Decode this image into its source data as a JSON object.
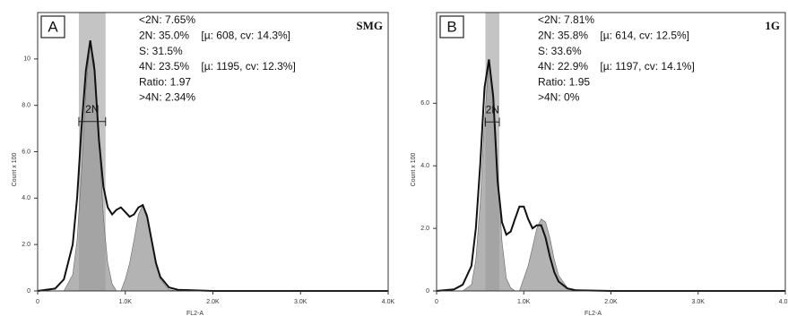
{
  "chart_data": [
    {
      "type": "line",
      "panel": "A",
      "sample": "SMG",
      "annotations": [
        "<2N: 7.65%",
        "2N: 35.0%    [µ: 608, cv: 14.3%]",
        "S: 31.5%",
        "4N: 23.5%    [µ: 1195, cv: 12.3%]",
        "Ratio: 1.97",
        ">4N: 2.34%"
      ],
      "y_label": "Count x 100",
      "x_label": "FL2-A",
      "x": [
        0,
        200,
        300,
        400,
        450,
        500,
        550,
        600,
        650,
        700,
        750,
        800,
        850,
        900,
        950,
        1000,
        1050,
        1100,
        1150,
        1200,
        1250,
        1300,
        1350,
        1400,
        1500,
        1600,
        2000,
        4000
      ],
      "series": [
        {
          "color": "#9a9a9a",
          "fill": true,
          "values": [
            0,
            0,
            0,
            0.7,
            2.2,
            5.1,
            8.7,
            10.8,
            9.8,
            6.5,
            3.2,
            1.2,
            0.3,
            0,
            0,
            0,
            0,
            0,
            0,
            0,
            0,
            0,
            0,
            0,
            0,
            0,
            0,
            0
          ]
        },
        {
          "color": "#9a9a9a",
          "fill": true,
          "values": [
            0,
            0,
            0,
            0,
            0,
            0,
            0,
            0,
            0,
            0,
            0,
            0,
            0,
            0,
            0,
            0.5,
            1.2,
            2.2,
            3.3,
            3.7,
            3.3,
            2.2,
            1.2,
            0.5,
            0.05,
            0,
            0,
            0
          ]
        },
        {
          "color": "#111111",
          "fill": false,
          "values": [
            0,
            0.1,
            0.5,
            2,
            4,
            7,
            9.5,
            10.8,
            9.5,
            6.5,
            4.5,
            3.6,
            3.3,
            3.5,
            3.6,
            3.4,
            3.2,
            3.3,
            3.6,
            3.7,
            3.2,
            2.2,
            1.2,
            0.6,
            0.15,
            0.05,
            0,
            0
          ]
        }
      ],
      "gate": {
        "label": "2N",
        "range": [
          470,
          775
        ],
        "level": 7.3
      },
      "xlim": [
        0,
        4000
      ],
      "ylim": [
        0,
        12
      ],
      "xticks": [
        0,
        {
          "value": 1000,
          "label": "1.0K"
        },
        {
          "value": 2000,
          "label": "2.0K"
        },
        {
          "value": 3000,
          "label": "3.0K"
        },
        {
          "value": 4000,
          "label": "4.0K"
        }
      ],
      "yticks": [
        0,
        {
          "value": 2,
          "label": "2.0"
        },
        {
          "value": 4,
          "label": "4.0"
        },
        {
          "value": 6,
          "label": "6.0"
        },
        {
          "value": 8,
          "label": "8.0"
        },
        10
      ]
    },
    {
      "type": "line",
      "panel": "B",
      "sample": "1G",
      "annotations": [
        "<2N: 7.81%",
        "2N: 35.8%    [µ: 614, cv: 12.5%]",
        "S: 33.6%",
        "4N: 22.9%    [µ: 1197, cv: 14.1%]",
        "Ratio: 1.95",
        ">4N: 0%"
      ],
      "y_label": "Count x 100",
      "x_label": "FL2-A",
      "x": [
        0,
        200,
        300,
        400,
        450,
        500,
        550,
        600,
        650,
        700,
        750,
        800,
        850,
        900,
        950,
        1000,
        1050,
        1100,
        1150,
        1200,
        1250,
        1300,
        1350,
        1400,
        1500,
        1600,
        2000,
        4000
      ],
      "series": [
        {
          "color": "#9a9a9a",
          "fill": true,
          "values": [
            0,
            0,
            0,
            0.2,
            1,
            2.8,
            5.5,
            7.3,
            6.4,
            3.9,
            1.6,
            0.4,
            0.1,
            0,
            0,
            0,
            0,
            0,
            0,
            0,
            0,
            0,
            0,
            0,
            0,
            0,
            0,
            0
          ]
        },
        {
          "color": "#9a9a9a",
          "fill": true,
          "values": [
            0,
            0,
            0,
            0,
            0,
            0,
            0,
            0,
            0,
            0,
            0,
            0,
            0,
            0,
            0,
            0.4,
            0.8,
            1.4,
            2,
            2.3,
            2.2,
            1.7,
            1,
            0.5,
            0.1,
            0,
            0,
            0
          ]
        },
        {
          "color": "#111111",
          "fill": false,
          "values": [
            0,
            0.05,
            0.2,
            0.8,
            2,
            4,
            6.5,
            7.4,
            6.2,
            3.5,
            2.2,
            1.8,
            1.9,
            2.3,
            2.7,
            2.7,
            2.3,
            2,
            2.1,
            2.1,
            1.7,
            1.1,
            0.6,
            0.3,
            0.08,
            0.02,
            0,
            0
          ]
        }
      ],
      "gate": {
        "label": "2N",
        "range": [
          560,
          720
        ],
        "level": 5.4
      },
      "xlim": [
        0,
        4000
      ],
      "ylim": [
        0,
        8.9
      ],
      "xticks": [
        0,
        {
          "value": 1000,
          "label": "1.0K"
        },
        {
          "value": 2000,
          "label": "2.0K"
        },
        {
          "value": 3000,
          "label": "3.0K"
        },
        {
          "value": 4000,
          "label": "4.0K"
        }
      ],
      "yticks": [
        0,
        {
          "value": 2,
          "label": "2.0"
        },
        {
          "value": 4,
          "label": "4.0"
        },
        {
          "value": 6,
          "label": "6.0"
        }
      ]
    }
  ]
}
